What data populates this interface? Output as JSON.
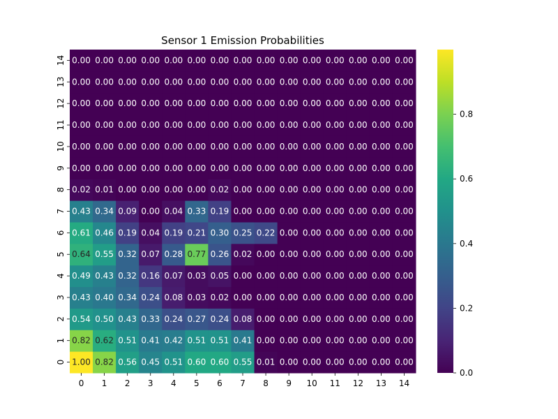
{
  "chart_data": {
    "type": "heatmap",
    "title": "Sensor 1 Emission Probabilities",
    "xlabel": "",
    "ylabel": "",
    "x_ticks": [
      "0",
      "1",
      "2",
      "3",
      "4",
      "5",
      "6",
      "7",
      "8",
      "9",
      "10",
      "11",
      "12",
      "13",
      "14"
    ],
    "y_ticks": [
      "0",
      "1",
      "2",
      "3",
      "4",
      "5",
      "6",
      "7",
      "8",
      "9",
      "10",
      "11",
      "12",
      "13",
      "14"
    ],
    "y_order": "bottom-to-top",
    "colormap": "viridis",
    "vmin": 0,
    "vmax": 1,
    "colorbar_ticks": [
      0.0,
      0.2,
      0.4,
      0.6,
      0.8
    ],
    "colorbar_tick_labels": [
      "0.0",
      "0.2",
      "0.4",
      "0.6",
      "0.8"
    ],
    "cell_format": "0.00",
    "values": [
      [
        1.0,
        0.82,
        0.56,
        0.45,
        0.51,
        0.6,
        0.6,
        0.55,
        0.01,
        0.0,
        0.0,
        0.0,
        0.0,
        0.0,
        0.0
      ],
      [
        0.82,
        0.62,
        0.51,
        0.41,
        0.42,
        0.51,
        0.51,
        0.41,
        0.0,
        0.0,
        0.0,
        0.0,
        0.0,
        0.0,
        0.0
      ],
      [
        0.54,
        0.5,
        0.43,
        0.33,
        0.24,
        0.27,
        0.24,
        0.08,
        0.0,
        0.0,
        0.0,
        0.0,
        0.0,
        0.0,
        0.0
      ],
      [
        0.43,
        0.4,
        0.34,
        0.24,
        0.08,
        0.03,
        0.02,
        0.0,
        0.0,
        0.0,
        0.0,
        0.0,
        0.0,
        0.0,
        0.0
      ],
      [
        0.49,
        0.43,
        0.32,
        0.16,
        0.07,
        0.03,
        0.05,
        0.0,
        0.0,
        0.0,
        0.0,
        0.0,
        0.0,
        0.0,
        0.0
      ],
      [
        0.64,
        0.55,
        0.32,
        0.07,
        0.28,
        0.77,
        0.26,
        0.02,
        0.0,
        0.0,
        0.0,
        0.0,
        0.0,
        0.0,
        0.0
      ],
      [
        0.61,
        0.46,
        0.19,
        0.04,
        0.19,
        0.21,
        0.3,
        0.25,
        0.22,
        0.0,
        0.0,
        0.0,
        0.0,
        0.0,
        0.0
      ],
      [
        0.43,
        0.34,
        0.09,
        0.0,
        0.04,
        0.33,
        0.19,
        0.0,
        0.0,
        0.0,
        0.0,
        0.0,
        0.0,
        0.0,
        0.0
      ],
      [
        0.02,
        0.01,
        0.0,
        0.0,
        0.0,
        0.0,
        0.02,
        0.0,
        0.0,
        0.0,
        0.0,
        0.0,
        0.0,
        0.0,
        0.0
      ],
      [
        0.0,
        0.0,
        0.0,
        0.0,
        0.0,
        0.0,
        0.0,
        0.0,
        0.0,
        0.0,
        0.0,
        0.0,
        0.0,
        0.0,
        0.0
      ],
      [
        0.0,
        0.0,
        0.0,
        0.0,
        0.0,
        0.0,
        0.0,
        0.0,
        0.0,
        0.0,
        0.0,
        0.0,
        0.0,
        0.0,
        0.0
      ],
      [
        0.0,
        0.0,
        0.0,
        0.0,
        0.0,
        0.0,
        0.0,
        0.0,
        0.0,
        0.0,
        0.0,
        0.0,
        0.0,
        0.0,
        0.0
      ],
      [
        0.0,
        0.0,
        0.0,
        0.0,
        0.0,
        0.0,
        0.0,
        0.0,
        0.0,
        0.0,
        0.0,
        0.0,
        0.0,
        0.0,
        0.0
      ],
      [
        0.0,
        0.0,
        0.0,
        0.0,
        0.0,
        0.0,
        0.0,
        0.0,
        0.0,
        0.0,
        0.0,
        0.0,
        0.0,
        0.0,
        0.0
      ],
      [
        0.0,
        0.0,
        0.0,
        0.0,
        0.0,
        0.0,
        0.0,
        0.0,
        0.0,
        0.0,
        0.0,
        0.0,
        0.0,
        0.0,
        0.0
      ]
    ]
  }
}
